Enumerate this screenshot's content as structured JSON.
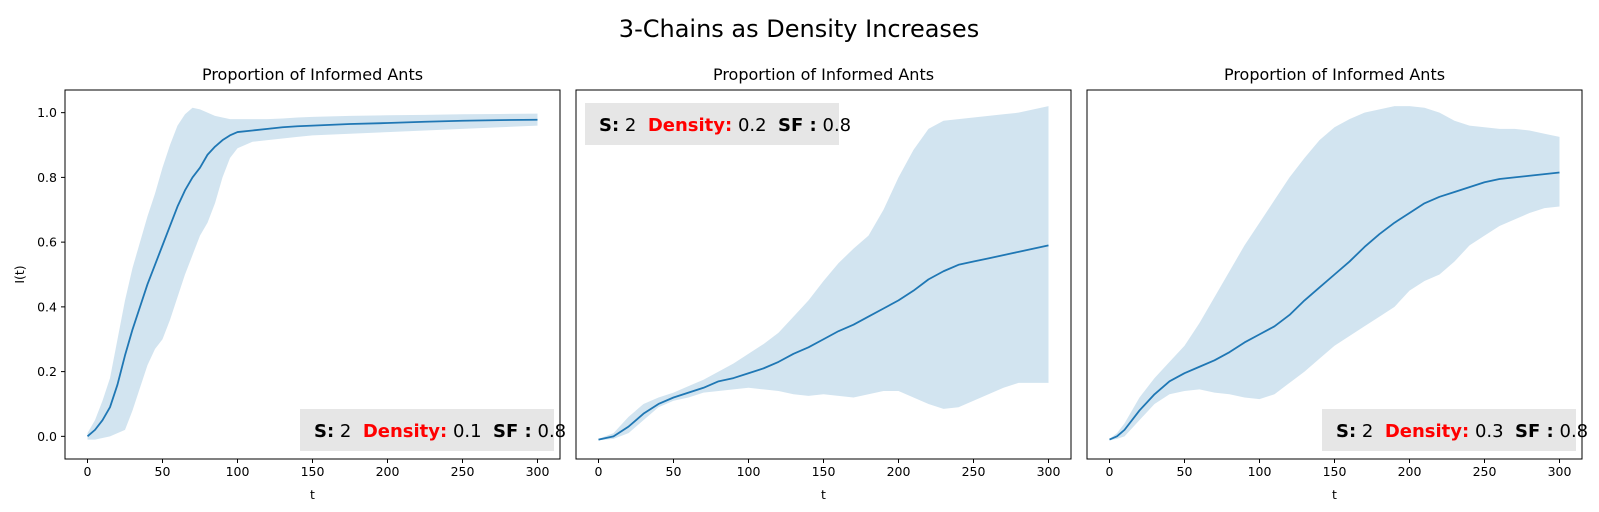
{
  "suptitle": "3-Chains as Density Increases",
  "colors": {
    "line": "#1f77b4",
    "band": "#1f77b4",
    "density_label": "#ff0000",
    "annotation_box": "#e6e6e6"
  },
  "chart_data": [
    {
      "type": "line",
      "title": "Proportion of Informed Ants",
      "xlabel": "t",
      "ylabel": "I(t)",
      "xlim": [
        -15,
        315
      ],
      "ylim": [
        -0.07,
        1.07
      ],
      "xticks": [
        0,
        50,
        100,
        150,
        200,
        250,
        300
      ],
      "yticks": [
        0.0,
        0.2,
        0.4,
        0.6,
        0.8,
        1.0
      ],
      "yticklabels": [
        "0.0",
        "0.2",
        "0.4",
        "0.6",
        "0.8",
        "1.0"
      ],
      "grid": false,
      "annotation": {
        "s_label": "S:",
        "s_value": "2",
        "density_label": "Density:",
        "density_value": "0.1",
        "sf_label": "SF :",
        "sf_value": "0.8",
        "position": "bottom-right"
      },
      "series": [
        {
          "x": [
            0,
            5,
            10,
            15,
            20,
            25,
            30,
            35,
            40,
            45,
            50,
            55,
            60,
            65,
            70,
            75,
            80,
            85,
            90,
            95,
            100,
            110,
            120,
            130,
            140,
            150,
            175,
            200,
            225,
            250,
            275,
            300
          ],
          "mean": [
            0.0,
            0.02,
            0.05,
            0.09,
            0.16,
            0.25,
            0.33,
            0.4,
            0.47,
            0.53,
            0.59,
            0.65,
            0.71,
            0.76,
            0.8,
            0.83,
            0.87,
            0.895,
            0.915,
            0.93,
            0.94,
            0.945,
            0.95,
            0.955,
            0.958,
            0.96,
            0.965,
            0.968,
            0.972,
            0.975,
            0.977,
            0.978
          ],
          "lower": [
            -0.01,
            -0.01,
            -0.005,
            0.0,
            0.01,
            0.02,
            0.08,
            0.15,
            0.22,
            0.27,
            0.3,
            0.36,
            0.43,
            0.5,
            0.56,
            0.62,
            0.66,
            0.72,
            0.8,
            0.86,
            0.89,
            0.91,
            0.915,
            0.92,
            0.925,
            0.93,
            0.935,
            0.94,
            0.945,
            0.95,
            0.955,
            0.96
          ],
          "upper": [
            0.01,
            0.05,
            0.11,
            0.18,
            0.3,
            0.42,
            0.52,
            0.6,
            0.68,
            0.75,
            0.83,
            0.9,
            0.96,
            0.995,
            1.015,
            1.01,
            1.0,
            0.99,
            0.985,
            0.98,
            0.98,
            0.98,
            0.98,
            0.982,
            0.985,
            0.987,
            0.99,
            0.992,
            0.993,
            0.995,
            0.996,
            0.997
          ]
        }
      ]
    },
    {
      "type": "line",
      "title": "Proportion of Informed Ants",
      "xlabel": "t",
      "ylabel": "",
      "xlim": [
        -15,
        315
      ],
      "ylim": [
        -0.07,
        1.07
      ],
      "xticks": [
        0,
        50,
        100,
        150,
        200,
        250,
        300
      ],
      "yticks": [],
      "yticklabels": [],
      "grid": false,
      "annotation": {
        "s_label": "S:",
        "s_value": "2",
        "density_label": "Density:",
        "density_value": "0.2",
        "sf_label": "SF :",
        "sf_value": "0.8",
        "position": "top-left"
      },
      "series": [
        {
          "x": [
            0,
            10,
            20,
            30,
            40,
            50,
            60,
            70,
            80,
            90,
            100,
            110,
            120,
            130,
            140,
            150,
            160,
            170,
            180,
            190,
            200,
            210,
            220,
            230,
            240,
            250,
            260,
            270,
            280,
            290,
            300
          ],
          "mean": [
            -0.01,
            0.0,
            0.03,
            0.07,
            0.1,
            0.12,
            0.135,
            0.15,
            0.17,
            0.18,
            0.195,
            0.21,
            0.23,
            0.255,
            0.275,
            0.3,
            0.325,
            0.345,
            0.37,
            0.395,
            0.42,
            0.45,
            0.485,
            0.51,
            0.53,
            0.54,
            0.55,
            0.56,
            0.57,
            0.58,
            0.59
          ],
          "lower": [
            -0.012,
            -0.008,
            0.01,
            0.05,
            0.09,
            0.11,
            0.12,
            0.135,
            0.14,
            0.145,
            0.15,
            0.145,
            0.14,
            0.13,
            0.125,
            0.13,
            0.125,
            0.12,
            0.13,
            0.14,
            0.14,
            0.12,
            0.1,
            0.085,
            0.09,
            0.11,
            0.13,
            0.15,
            0.165,
            0.165,
            0.165
          ],
          "upper": [
            -0.008,
            0.01,
            0.06,
            0.1,
            0.12,
            0.135,
            0.155,
            0.175,
            0.2,
            0.225,
            0.255,
            0.285,
            0.32,
            0.37,
            0.42,
            0.48,
            0.535,
            0.58,
            0.62,
            0.7,
            0.8,
            0.885,
            0.95,
            0.975,
            0.98,
            0.985,
            0.99,
            0.995,
            1.0,
            1.01,
            1.02
          ]
        }
      ]
    },
    {
      "type": "line",
      "title": "Proportion of Informed Ants",
      "xlabel": "t",
      "ylabel": "",
      "xlim": [
        -15,
        315
      ],
      "ylim": [
        -0.07,
        1.07
      ],
      "xticks": [
        0,
        50,
        100,
        150,
        200,
        250,
        300
      ],
      "yticks": [],
      "yticklabels": [],
      "grid": false,
      "annotation": {
        "s_label": "S:",
        "s_value": "2",
        "density_label": "Density:",
        "density_value": "0.3",
        "sf_label": "SF :",
        "sf_value": "0.8",
        "position": "bottom-right"
      },
      "series": [
        {
          "x": [
            0,
            5,
            10,
            20,
            30,
            40,
            50,
            60,
            70,
            80,
            90,
            100,
            110,
            120,
            130,
            140,
            150,
            160,
            170,
            180,
            190,
            200,
            210,
            220,
            230,
            240,
            250,
            260,
            270,
            280,
            290,
            300
          ],
          "mean": [
            -0.01,
            0.0,
            0.02,
            0.08,
            0.13,
            0.17,
            0.195,
            0.215,
            0.235,
            0.26,
            0.29,
            0.315,
            0.34,
            0.375,
            0.42,
            0.46,
            0.5,
            0.54,
            0.585,
            0.625,
            0.66,
            0.69,
            0.72,
            0.74,
            0.755,
            0.77,
            0.785,
            0.795,
            0.8,
            0.805,
            0.81,
            0.815
          ],
          "lower": [
            -0.012,
            -0.008,
            0.0,
            0.05,
            0.1,
            0.13,
            0.14,
            0.145,
            0.135,
            0.13,
            0.12,
            0.115,
            0.13,
            0.165,
            0.2,
            0.24,
            0.28,
            0.31,
            0.34,
            0.37,
            0.4,
            0.45,
            0.48,
            0.5,
            0.54,
            0.59,
            0.62,
            0.65,
            0.67,
            0.69,
            0.705,
            0.71
          ],
          "upper": [
            -0.008,
            0.01,
            0.04,
            0.12,
            0.18,
            0.23,
            0.28,
            0.35,
            0.43,
            0.51,
            0.59,
            0.66,
            0.73,
            0.8,
            0.86,
            0.915,
            0.955,
            0.98,
            1.0,
            1.01,
            1.02,
            1.02,
            1.015,
            1.0,
            0.975,
            0.96,
            0.955,
            0.95,
            0.95,
            0.945,
            0.935,
            0.925
          ]
        }
      ]
    }
  ]
}
